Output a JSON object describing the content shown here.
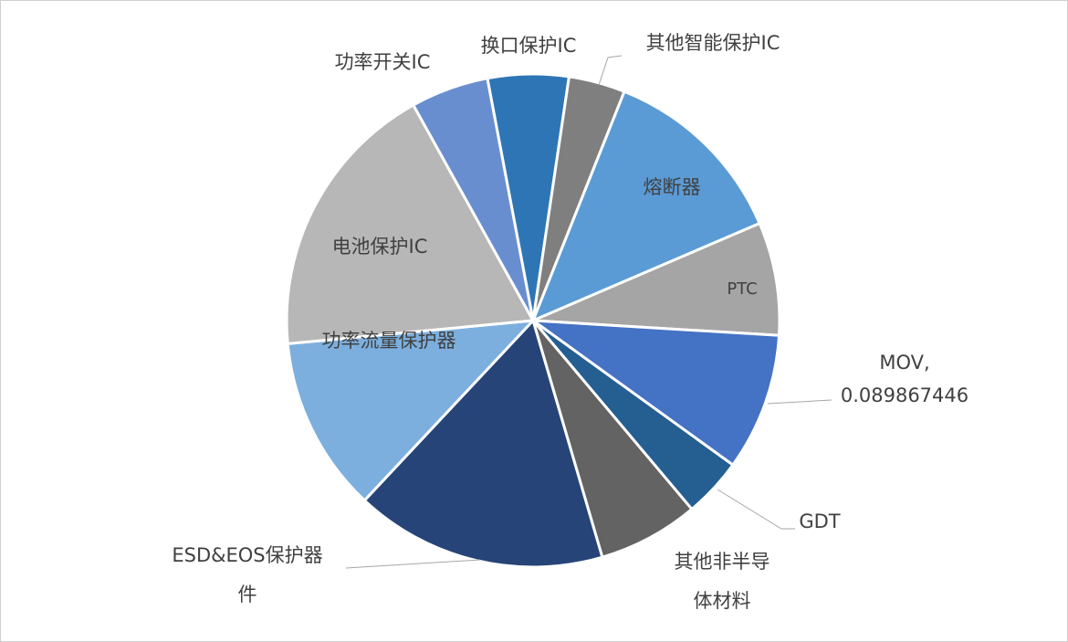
{
  "chart_data": {
    "type": "pie",
    "categories": [
      "换口保护IC",
      "其他智能保护IC",
      "熔断器",
      "PTC",
      "MOV",
      "GDT",
      "其他非半导体材料",
      "ESD&EOS保护器件",
      "功率流量保护器",
      "电池保护IC",
      "功率开关IC"
    ],
    "values": [
      0.053,
      0.037,
      0.125,
      0.074,
      0.089867446,
      0.039,
      0.066,
      0.165,
      0.115,
      0.184,
      0.051
    ],
    "value_labels": [
      null,
      null,
      null,
      null,
      "0.089867446",
      null,
      null,
      null,
      null,
      null,
      null
    ],
    "label_separator": ",",
    "colors": [
      "#2e75b6",
      "#7f7f7f",
      "#5b9bd5",
      "#a5a5a5",
      "#4472c4",
      "#255e91",
      "#636363",
      "#264478",
      "#7cafdd",
      "#b7b7b7",
      "#698ed0"
    ]
  }
}
